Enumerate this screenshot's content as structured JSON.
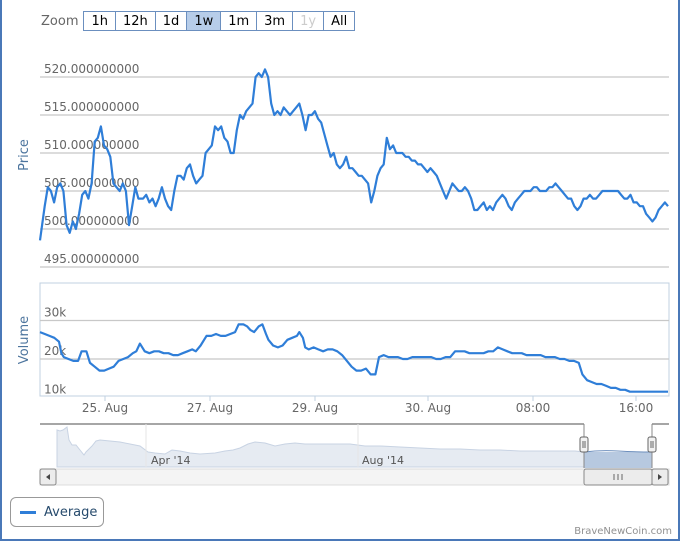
{
  "colors": {
    "line": "#2f7ed8",
    "frame": "#4a78b8",
    "grid": "#c0c0c0",
    "axis_label": "#4d759e",
    "navigator_fill": "#e6ebf2",
    "navigator_selected": "#b7c9e0"
  },
  "zoom": {
    "label": "Zoom",
    "buttons": [
      {
        "label": "1h",
        "state": "normal"
      },
      {
        "label": "12h",
        "state": "normal"
      },
      {
        "label": "1d",
        "state": "normal"
      },
      {
        "label": "1w",
        "state": "active"
      },
      {
        "label": "1m",
        "state": "normal"
      },
      {
        "label": "3m",
        "state": "normal"
      },
      {
        "label": "1y",
        "state": "disabled"
      },
      {
        "label": "All",
        "state": "normal"
      }
    ]
  },
  "legend": {
    "label": "Average"
  },
  "credit": "BraveNewCoin.com",
  "navigator": {
    "labels": [
      "Apr '14",
      "Aug '14"
    ]
  },
  "chart_data": [
    {
      "type": "line",
      "title": "",
      "ylabel": "Price",
      "xlabel": "",
      "series_name": "Average",
      "yticks": [
        "495.000000000",
        "500.000000000",
        "505.000000000",
        "510.000000000",
        "515.000000000",
        "520.000000000"
      ],
      "ylim": [
        495,
        520
      ],
      "xticks": [
        "25. Aug",
        "27. Aug",
        "29. Aug",
        "30. Aug",
        "08:00",
        "16:00"
      ],
      "points": [
        [
          40,
          498.5
        ],
        [
          43,
          503
        ],
        [
          45,
          505.5
        ],
        [
          47,
          505
        ],
        [
          49,
          503.5
        ],
        [
          51,
          505.5
        ],
        [
          53,
          506
        ],
        [
          55,
          505
        ],
        [
          57,
          500.5
        ],
        [
          59,
          499.5
        ],
        [
          61,
          501
        ],
        [
          63,
          500
        ],
        [
          65,
          502
        ],
        [
          67,
          504.5
        ],
        [
          69,
          505
        ],
        [
          71,
          504
        ],
        [
          73,
          506
        ],
        [
          75,
          511.5
        ],
        [
          77,
          512
        ],
        [
          79,
          513.5
        ],
        [
          81,
          511
        ],
        [
          83,
          510.5
        ],
        [
          85,
          509.5
        ],
        [
          87,
          506
        ],
        [
          89,
          505.5
        ],
        [
          91,
          505
        ],
        [
          93,
          506
        ],
        [
          95,
          505
        ],
        [
          97,
          500.5
        ],
        [
          99,
          503
        ],
        [
          101,
          505.5
        ],
        [
          103,
          504
        ],
        [
          106,
          504
        ],
        [
          108,
          504.5
        ],
        [
          110,
          503.5
        ],
        [
          112,
          504
        ],
        [
          114,
          503
        ],
        [
          116,
          504
        ],
        [
          118,
          505.5
        ],
        [
          120,
          504
        ],
        [
          122,
          503
        ],
        [
          124,
          502.5
        ],
        [
          126,
          505
        ],
        [
          128,
          507
        ],
        [
          130,
          507
        ],
        [
          132,
          506.5
        ],
        [
          134,
          508
        ],
        [
          136,
          508.5
        ],
        [
          138,
          507
        ],
        [
          140,
          506
        ],
        [
          142,
          506.5
        ],
        [
          144,
          507
        ],
        [
          146,
          510
        ],
        [
          148,
          510.5
        ],
        [
          150,
          511
        ],
        [
          152,
          513.5
        ],
        [
          154,
          513
        ],
        [
          156,
          513.5
        ],
        [
          158,
          512
        ],
        [
          160,
          511.5
        ],
        [
          162,
          510
        ],
        [
          164,
          510
        ],
        [
          166,
          513
        ],
        [
          168,
          515
        ],
        [
          170,
          514.5
        ],
        [
          172,
          515.5
        ],
        [
          174,
          516
        ],
        [
          176,
          516.5
        ],
        [
          178,
          520
        ],
        [
          180,
          520.5
        ],
        [
          182,
          520
        ],
        [
          184,
          521
        ],
        [
          186,
          520
        ],
        [
          188,
          516.5
        ],
        [
          190,
          515
        ],
        [
          192,
          515.5
        ],
        [
          194,
          515
        ],
        [
          196,
          516
        ],
        [
          198,
          515.5
        ],
        [
          200,
          515
        ],
        [
          202,
          515.5
        ],
        [
          204,
          516
        ],
        [
          206,
          516.5
        ],
        [
          208,
          515
        ],
        [
          210,
          513
        ],
        [
          212,
          515
        ],
        [
          214,
          515
        ],
        [
          216,
          515.5
        ],
        [
          218,
          514.5
        ],
        [
          220,
          514
        ],
        [
          222,
          512.5
        ],
        [
          224,
          511
        ],
        [
          226,
          509.5
        ],
        [
          228,
          510
        ],
        [
          230,
          508.5
        ],
        [
          232,
          508
        ],
        [
          234,
          508.5
        ],
        [
          236,
          509.5
        ],
        [
          238,
          508
        ],
        [
          240,
          508
        ],
        [
          242,
          507.5
        ],
        [
          244,
          507
        ],
        [
          246,
          507
        ],
        [
          248,
          506.5
        ],
        [
          250,
          506
        ],
        [
          252,
          503.5
        ],
        [
          254,
          505
        ],
        [
          256,
          507
        ],
        [
          258,
          508
        ],
        [
          260,
          508.5
        ],
        [
          262,
          512
        ],
        [
          264,
          510.5
        ],
        [
          266,
          511
        ],
        [
          268,
          510
        ],
        [
          270,
          510
        ],
        [
          272,
          510
        ],
        [
          274,
          509.5
        ],
        [
          276,
          509.5
        ],
        [
          278,
          509
        ],
        [
          280,
          509
        ],
        [
          282,
          508.5
        ],
        [
          284,
          508.5
        ],
        [
          286,
          508
        ],
        [
          288,
          507.5
        ],
        [
          290,
          508
        ],
        [
          292,
          507.5
        ],
        [
          294,
          507
        ],
        [
          296,
          506
        ],
        [
          298,
          505
        ],
        [
          300,
          504
        ],
        [
          302,
          505
        ],
        [
          304,
          506
        ],
        [
          306,
          505.5
        ],
        [
          308,
          505
        ],
        [
          310,
          505
        ],
        [
          312,
          505.5
        ],
        [
          314,
          505
        ],
        [
          316,
          504
        ],
        [
          318,
          502.5
        ],
        [
          320,
          502.5
        ],
        [
          322,
          503
        ],
        [
          324,
          503.5
        ],
        [
          326,
          502.5
        ],
        [
          328,
          503
        ],
        [
          330,
          502.5
        ],
        [
          332,
          503.5
        ],
        [
          334,
          504
        ],
        [
          336,
          504.5
        ],
        [
          338,
          504
        ],
        [
          340,
          503
        ],
        [
          342,
          502.5
        ],
        [
          344,
          503.5
        ],
        [
          346,
          504
        ],
        [
          348,
          504.5
        ],
        [
          350,
          505
        ],
        [
          352,
          505
        ],
        [
          354,
          505
        ],
        [
          356,
          505.5
        ],
        [
          358,
          505.5
        ],
        [
          360,
          505
        ],
        [
          362,
          505
        ],
        [
          364,
          505
        ],
        [
          366,
          505.5
        ],
        [
          368,
          505.5
        ],
        [
          370,
          506
        ],
        [
          372,
          505.5
        ],
        [
          374,
          505
        ],
        [
          376,
          504.5
        ],
        [
          378,
          504
        ],
        [
          380,
          504
        ],
        [
          382,
          503
        ],
        [
          384,
          502.5
        ],
        [
          386,
          503
        ],
        [
          388,
          504
        ],
        [
          390,
          504
        ],
        [
          392,
          504.5
        ],
        [
          394,
          504
        ],
        [
          396,
          504
        ],
        [
          398,
          504.5
        ],
        [
          400,
          505
        ],
        [
          402,
          505
        ],
        [
          404,
          505
        ],
        [
          406,
          505
        ],
        [
          408,
          505
        ],
        [
          410,
          505
        ],
        [
          412,
          504.5
        ],
        [
          414,
          504
        ],
        [
          416,
          504
        ],
        [
          418,
          504.5
        ],
        [
          420,
          503.5
        ],
        [
          422,
          503.5
        ],
        [
          424,
          503
        ],
        [
          426,
          503
        ],
        [
          428,
          502
        ],
        [
          430,
          501.5
        ],
        [
          432,
          501
        ],
        [
          434,
          501.5
        ],
        [
          436,
          502.5
        ],
        [
          438,
          503
        ],
        [
          440,
          503.5
        ],
        [
          442,
          503
        ]
      ],
      "price_points_note": "x in screen px; rescaled to full plot width"
    },
    {
      "type": "line",
      "title": "",
      "ylabel": "Volume",
      "xlabel": "",
      "series_name": "Volume",
      "yticks": [
        "10k",
        "20k",
        "30k"
      ],
      "ylim": [
        9000,
        36000
      ],
      "xticks": [
        "25. Aug",
        "27. Aug",
        "29. Aug",
        "30. Aug",
        "08:00",
        "16:00"
      ],
      "points": [
        [
          40,
          27
        ],
        [
          44,
          26.5
        ],
        [
          48,
          26
        ],
        [
          52,
          25.5
        ],
        [
          56,
          24.5
        ],
        [
          58,
          21.5
        ],
        [
          60,
          20.5
        ],
        [
          64,
          20
        ],
        [
          68,
          19.5
        ],
        [
          72,
          19.5
        ],
        [
          75,
          22
        ],
        [
          79,
          22
        ],
        [
          82,
          19
        ],
        [
          86,
          18
        ],
        [
          90,
          17
        ],
        [
          94,
          17
        ],
        [
          98,
          17.5
        ],
        [
          102,
          18
        ],
        [
          106,
          19.5
        ],
        [
          110,
          20
        ],
        [
          114,
          20.5
        ],
        [
          118,
          21.5
        ],
        [
          121,
          22
        ],
        [
          124,
          24
        ],
        [
          126,
          23
        ],
        [
          128,
          22
        ],
        [
          132,
          21.5
        ],
        [
          136,
          22
        ],
        [
          140,
          22
        ],
        [
          144,
          21.5
        ],
        [
          148,
          21.5
        ],
        [
          152,
          21
        ],
        [
          156,
          21
        ],
        [
          160,
          21.5
        ],
        [
          164,
          22
        ],
        [
          168,
          22.5
        ],
        [
          171,
          22
        ],
        [
          175,
          23.5
        ],
        [
          178,
          25
        ],
        [
          180,
          26
        ],
        [
          184,
          26
        ],
        [
          188,
          26.5
        ],
        [
          192,
          26
        ],
        [
          196,
          26
        ],
        [
          200,
          26.5
        ],
        [
          204,
          27
        ],
        [
          207,
          29
        ],
        [
          211,
          29
        ],
        [
          214,
          28.5
        ],
        [
          217,
          27.5
        ],
        [
          220,
          27
        ],
        [
          224,
          28.5
        ],
        [
          227,
          29
        ],
        [
          230,
          26.5
        ],
        [
          232,
          25
        ],
        [
          236,
          23.5
        ],
        [
          240,
          23
        ],
        [
          244,
          23.5
        ],
        [
          248,
          25
        ],
        [
          252,
          25.5
        ],
        [
          256,
          26
        ],
        [
          258,
          27
        ],
        [
          261,
          25.5
        ],
        [
          263,
          23
        ],
        [
          266,
          22.5
        ],
        [
          270,
          23
        ],
        [
          274,
          22.5
        ],
        [
          278,
          22
        ],
        [
          282,
          22.5
        ],
        [
          286,
          22.5
        ],
        [
          290,
          22
        ],
        [
          294,
          21
        ],
        [
          298,
          19.5
        ],
        [
          302,
          18
        ],
        [
          306,
          17
        ],
        [
          310,
          17
        ],
        [
          314,
          17.5
        ],
        [
          318,
          16
        ],
        [
          322,
          16
        ],
        [
          325,
          20.5
        ],
        [
          329,
          21
        ],
        [
          333,
          20.5
        ],
        [
          337,
          20.5
        ],
        [
          341,
          20.5
        ],
        [
          345,
          20
        ],
        [
          349,
          20
        ],
        [
          353,
          20.5
        ],
        [
          357,
          20.5
        ],
        [
          361,
          20.5
        ],
        [
          365,
          20.5
        ],
        [
          369,
          20.5
        ],
        [
          373,
          20
        ],
        [
          377,
          20
        ],
        [
          381,
          20.5
        ],
        [
          385,
          20.5
        ],
        [
          389,
          22
        ],
        [
          393,
          22
        ],
        [
          397,
          22
        ],
        [
          401,
          21.5
        ],
        [
          405,
          21.5
        ],
        [
          409,
          21.5
        ],
        [
          413,
          21.5
        ],
        [
          417,
          22
        ],
        [
          421,
          22
        ],
        [
          425,
          23
        ],
        [
          429,
          22.5
        ],
        [
          433,
          22
        ],
        [
          437,
          21.5
        ],
        [
          441,
          21.5
        ],
        [
          445,
          21.5
        ],
        [
          449,
          21
        ],
        [
          453,
          21
        ],
        [
          457,
          21
        ],
        [
          461,
          21
        ],
        [
          465,
          20.5
        ],
        [
          469,
          20.5
        ],
        [
          473,
          20.5
        ],
        [
          477,
          20
        ],
        [
          481,
          20
        ],
        [
          485,
          19.5
        ],
        [
          489,
          19.5
        ],
        [
          493,
          19
        ],
        [
          496,
          16
        ],
        [
          500,
          14.5
        ],
        [
          504,
          14
        ],
        [
          508,
          13.5
        ],
        [
          512,
          13.5
        ],
        [
          516,
          13
        ],
        [
          520,
          12.5
        ],
        [
          524,
          12.5
        ],
        [
          528,
          12
        ],
        [
          532,
          12
        ],
        [
          536,
          11.5
        ],
        [
          540,
          11.5
        ],
        [
          544,
          11.5
        ],
        [
          548,
          11.5
        ],
        [
          552,
          11.5
        ],
        [
          556,
          11.5
        ],
        [
          560,
          11.5
        ],
        [
          564,
          11.5
        ],
        [
          568,
          11.5
        ]
      ],
      "volume_points_note": "x in screen px (pre-scale), values in thousands"
    }
  ]
}
